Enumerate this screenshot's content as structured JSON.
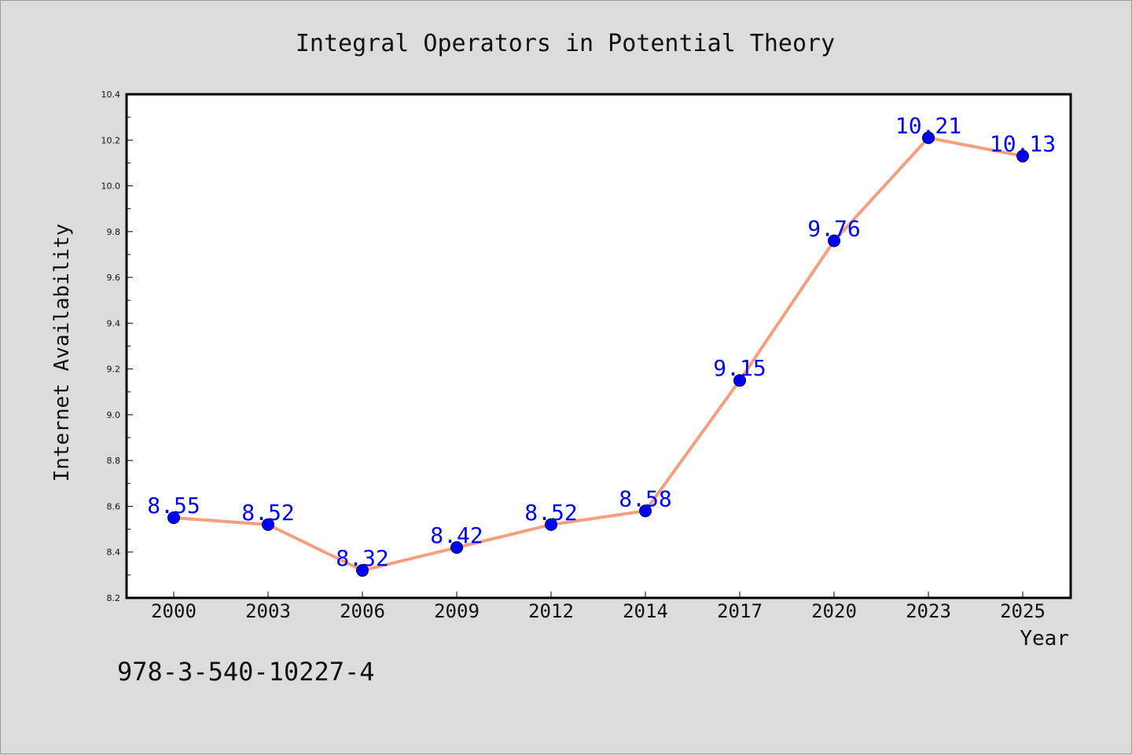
{
  "chart_data": {
    "type": "line",
    "title": "Integral Operators in Potential Theory",
    "xlabel": "Year",
    "ylabel": "Internet Availability",
    "categories": [
      "2000",
      "2003",
      "2006",
      "2009",
      "2012",
      "2014",
      "2017",
      "2020",
      "2023",
      "2025"
    ],
    "series": [
      {
        "values": [
          8.55,
          8.52,
          8.32,
          8.42,
          8.52,
          8.58,
          9.15,
          9.76,
          10.21,
          10.13
        ],
        "labels": [
          "8.55",
          "8.52",
          "8.32",
          "8.42",
          "8.52",
          "8.58",
          "9.15",
          "9.76",
          "10.21",
          "10.13"
        ],
        "line_color": "#f4a07e",
        "marker_color": "#0000ff"
      }
    ],
    "ylim": [
      8.2,
      10.4
    ],
    "yticks": [
      "8.2",
      "8.4",
      "8.6",
      "8.8",
      "9.0",
      "9.2",
      "9.4",
      "9.6",
      "9.8",
      "10.0",
      "10.2",
      "10.4"
    ],
    "grid": false,
    "legend": "none"
  },
  "footer": {
    "isbn": "978-3-540-10227-4"
  }
}
